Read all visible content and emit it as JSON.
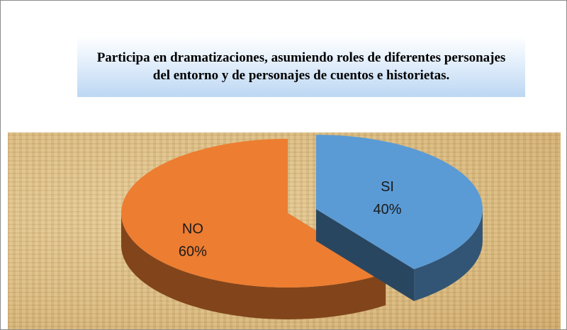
{
  "chart_data": {
    "type": "pie",
    "title": "Participa en dramatizaciones, asumiendo roles de diferentes personajes del entorno y de personajes de cuentos e historietas.",
    "categories": [
      "SI",
      "NO"
    ],
    "values": [
      40,
      60
    ],
    "value_labels": [
      "40%",
      "60%"
    ],
    "colors": [
      "#5b9bd5",
      "#ed7d31"
    ],
    "three_d": true,
    "exploded": [
      "SI"
    ]
  }
}
